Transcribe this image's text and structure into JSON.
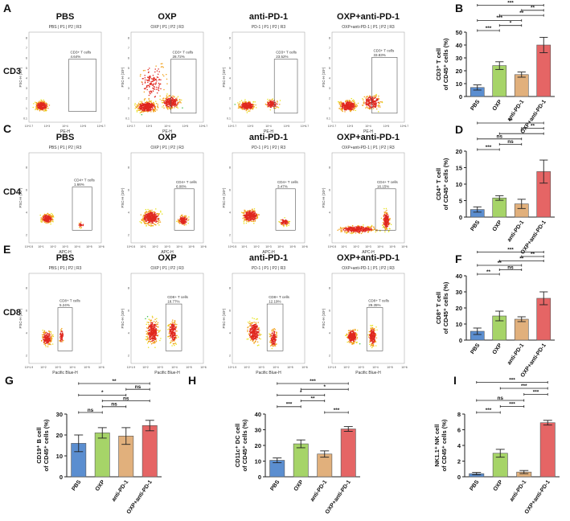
{
  "colors": {
    "pbs": "#5b8ed0",
    "oxp": "#a6d468",
    "antipd1": "#e1b07c",
    "combo": "#e56565",
    "axis": "#222222"
  },
  "flow_rows": [
    {
      "letter": "A",
      "row_label": "CD3",
      "show_titles": true,
      "titles": [
        "PBS",
        "OXP",
        "anti-PD-1",
        "OXP+anti-PD-1"
      ],
      "subtitle_prefix": [
        "PBS",
        "OXP",
        "PD-1",
        "OXP+anti-PD-1"
      ],
      "gate_name": "CD3+ T cells",
      "percents": [
        "4.64%",
        "28.72%",
        "23.52%",
        "33.83%"
      ],
      "xaxis_label": "PE-H",
      "yaxis_label": "FSC-H (10⁶)",
      "x_ticks": [
        "10^2.7",
        "10^3",
        "10^4",
        "10^5",
        "10^6.7"
      ],
      "y_ticks": [
        "0.1",
        "1",
        "2",
        "3",
        "4",
        "5",
        "6",
        "7",
        "8"
      ]
    },
    {
      "letter": "C",
      "row_label": "CD4",
      "show_titles": true,
      "titles": [
        "PBS",
        "OXP",
        "anti-PD-1",
        "OXP+anti-PD-1"
      ],
      "subtitle_prefix": [
        "PBS",
        "OXP",
        "PD-1",
        "OXP+anti-PD-1"
      ],
      "gate_name": "CD4+ T cells",
      "percents": [
        "1.66%",
        "6.08%",
        "3.47%",
        "16.15%"
      ],
      "xaxis_label": "APC-H",
      "yaxis_label": "FSC-H (10⁶)",
      "x_ticks": [
        "10^0.5",
        "10^1",
        "10^2",
        "10^3",
        "10^4",
        "10^5",
        "10^6"
      ],
      "y_ticks": [
        "2",
        "4",
        "6",
        "8"
      ]
    },
    {
      "letter": "E",
      "row_label": "CD8",
      "show_titles": true,
      "titles": [
        "PBS",
        "OXP",
        "anti-PD-1",
        "OXP+anti-PD-1"
      ],
      "subtitle_prefix": [
        "PBS",
        "OXP",
        "PD-1",
        "OXP+anti-PD-1"
      ],
      "gate_name": "CD8+ T cells",
      "percents": [
        "5.24%",
        "18.77%",
        "12.19%",
        "29.35%"
      ],
      "xaxis_label": "Pacific Blue-H",
      "yaxis_label": "FSC-H (10⁶)",
      "x_ticks": [
        "10^1.9",
        "10^2",
        "10^3",
        "10^4",
        "10^5",
        "10^6"
      ],
      "y_ticks": [
        "2",
        "4",
        "6",
        "8"
      ]
    }
  ],
  "subtitle_gates": "P1 | P2 | R3",
  "chart_data": [
    {
      "type": "bar",
      "panel": "B",
      "categories": [
        "PBS",
        "OXP",
        "anti-PD-1",
        "OXP+anti-PD-1"
      ],
      "values": [
        7,
        24,
        17,
        40
      ],
      "errors": [
        2,
        3,
        2,
        6
      ],
      "ylabel_lines": [
        "CD3⁺ T cell",
        "of CD45⁺ cells (%)"
      ],
      "ylim": [
        0,
        50
      ],
      "yticks": [
        0,
        10,
        20,
        30,
        40,
        50
      ],
      "brackets": [
        {
          "from": 0,
          "to": 3,
          "label": "***"
        },
        {
          "from": 2,
          "to": 3,
          "label": "**"
        },
        {
          "from": 1,
          "to": 3,
          "label": "**"
        },
        {
          "from": 0,
          "to": 2,
          "label": "***"
        },
        {
          "from": 1,
          "to": 2,
          "label": "*"
        },
        {
          "from": 0,
          "to": 1,
          "label": "***"
        }
      ]
    },
    {
      "type": "bar",
      "panel": "D",
      "categories": [
        "PBS",
        "OXP",
        "anti-PD-1",
        "OXP+anti-PD-1"
      ],
      "values": [
        2.3,
        5.8,
        4,
        13.8
      ],
      "errors": [
        0.8,
        0.7,
        1.4,
        3.5
      ],
      "ylabel_lines": [
        "CD4⁺ T cell",
        "of CD45⁺ cells (%)"
      ],
      "ylim": [
        0,
        20
      ],
      "yticks": [
        0,
        5,
        10,
        15,
        20
      ],
      "brackets": [
        {
          "from": 0,
          "to": 3,
          "label": "**"
        },
        {
          "from": 2,
          "to": 3,
          "label": "**"
        },
        {
          "from": 1,
          "to": 3,
          "label": "*"
        },
        {
          "from": 0,
          "to": 2,
          "label": "ns"
        },
        {
          "from": 1,
          "to": 2,
          "label": "ns"
        },
        {
          "from": 0,
          "to": 1,
          "label": "***"
        }
      ]
    },
    {
      "type": "bar",
      "panel": "F",
      "categories": [
        "PBS",
        "OXP",
        "anti-PD-1",
        "OXP+anti-PD-1"
      ],
      "values": [
        5.5,
        15,
        13,
        26
      ],
      "errors": [
        2,
        3,
        1.5,
        4
      ],
      "ylabel_lines": [
        "CD8⁺ T cell",
        "of CD45⁺ cells (%)"
      ],
      "ylim": [
        0,
        40
      ],
      "yticks": [
        0,
        10,
        20,
        30,
        40
      ],
      "brackets": [
        {
          "from": 0,
          "to": 3,
          "label": "***"
        },
        {
          "from": 2,
          "to": 3,
          "label": "**"
        },
        {
          "from": 1,
          "to": 3,
          "label": "**"
        },
        {
          "from": 0,
          "to": 2,
          "label": "**"
        },
        {
          "from": 1,
          "to": 2,
          "label": "ns"
        },
        {
          "from": 0,
          "to": 1,
          "label": "**"
        }
      ]
    },
    {
      "type": "bar",
      "panel": "G",
      "categories": [
        "PBS",
        "OXP",
        "anti-PD-1",
        "OXP+anti-PD-1"
      ],
      "values": [
        16,
        21,
        19.5,
        24.5
      ],
      "errors": [
        4,
        2.5,
        4,
        2.5
      ],
      "ylabel_lines": [
        "CD19⁺ B cell",
        "of CD45⁺ cells (%)"
      ],
      "ylim": [
        0,
        30
      ],
      "yticks": [
        0,
        10,
        20,
        30
      ],
      "brackets": [
        {
          "from": 0,
          "to": 3,
          "label": "**"
        },
        {
          "from": 2,
          "to": 3,
          "label": "ns"
        },
        {
          "from": 0,
          "to": 2,
          "label": "*"
        },
        {
          "from": 1,
          "to": 3,
          "label": "ns"
        },
        {
          "from": 1,
          "to": 2,
          "label": "ns"
        },
        {
          "from": 0,
          "to": 1,
          "label": "ns"
        }
      ]
    },
    {
      "type": "bar",
      "panel": "H",
      "categories": [
        "PBS",
        "OXP",
        "anti-PD-1",
        "OXP+anti-PD-1"
      ],
      "values": [
        10.5,
        21,
        14.5,
        30.5
      ],
      "errors": [
        1.5,
        2.5,
        2,
        1.5
      ],
      "ylabel_lines": [
        "CD11c⁺ DC cell",
        "of CD45⁺ cells (%)"
      ],
      "ylim": [
        0,
        40
      ],
      "yticks": [
        0,
        10,
        20,
        30,
        40
      ],
      "brackets": [
        {
          "from": 0,
          "to": 3,
          "label": "***"
        },
        {
          "from": 1,
          "to": 3,
          "label": "*"
        },
        {
          "from": 0,
          "to": 2,
          "label": "*"
        },
        {
          "from": 1,
          "to": 2,
          "label": "**"
        },
        {
          "from": 0,
          "to": 1,
          "label": "***"
        },
        {
          "from": 2,
          "to": 3,
          "label": "***"
        }
      ]
    },
    {
      "type": "bar",
      "panel": "I",
      "categories": [
        "PBS",
        "OXP",
        "anti-PD-1",
        "OXP+anti-PD-1"
      ],
      "values": [
        0.4,
        3,
        0.6,
        6.9
      ],
      "errors": [
        0.15,
        0.5,
        0.2,
        0.3
      ],
      "ylabel_lines": [
        "NK1.1⁺ NK cell",
        "of CD45⁺ cells (%)"
      ],
      "ylim": [
        0,
        8
      ],
      "yticks": [
        0,
        2,
        4,
        6,
        8
      ],
      "brackets": [
        {
          "from": 0,
          "to": 3,
          "label": "***"
        },
        {
          "from": 1,
          "to": 3,
          "label": "***"
        },
        {
          "from": 2,
          "to": 3,
          "label": "***"
        },
        {
          "from": 0,
          "to": 2,
          "label": "ns"
        },
        {
          "from": 1,
          "to": 2,
          "label": "***"
        },
        {
          "from": 0,
          "to": 1,
          "label": "***"
        }
      ]
    }
  ]
}
